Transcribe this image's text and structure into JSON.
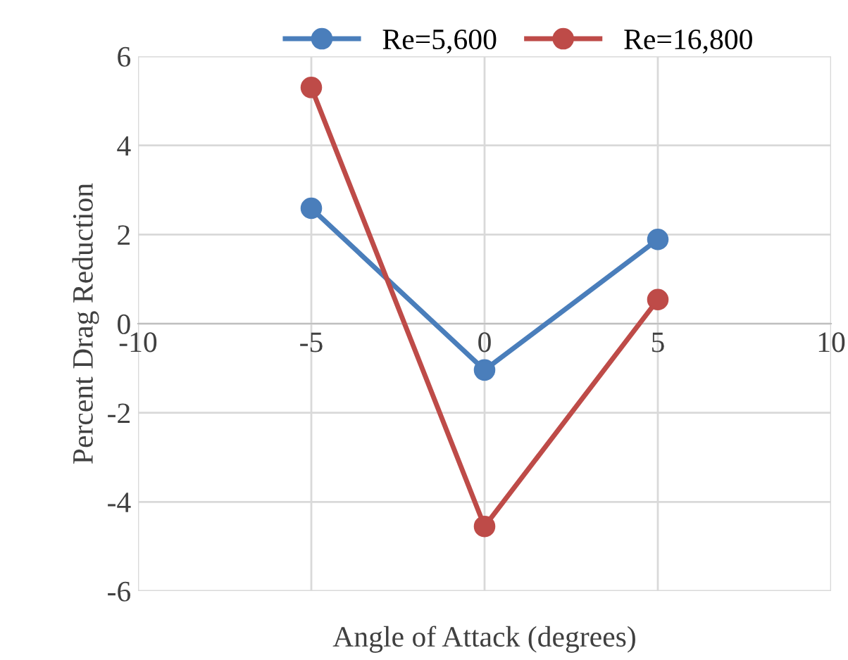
{
  "chart_data": {
    "type": "line",
    "xlabel": "Angle of Attack (degrees)",
    "ylabel": "Percent Drag Reduction",
    "x": [
      -5,
      0,
      5
    ],
    "series": [
      {
        "name": "Re=5,600",
        "color": "#4a7ebb",
        "values": [
          2.59,
          -1.04,
          1.89
        ]
      },
      {
        "name": "Re=16,800",
        "color": "#be4b48",
        "values": [
          5.3,
          -4.55,
          0.54
        ]
      }
    ],
    "xlim": [
      -10,
      10
    ],
    "xticks": [
      -10,
      -5,
      0,
      5,
      10
    ],
    "ylim": [
      -6,
      6
    ],
    "yticks": [
      -6,
      -4,
      -2,
      0,
      2,
      4,
      6
    ],
    "grid": true,
    "legend": "top",
    "marker": "circle",
    "line_style": "solid"
  }
}
